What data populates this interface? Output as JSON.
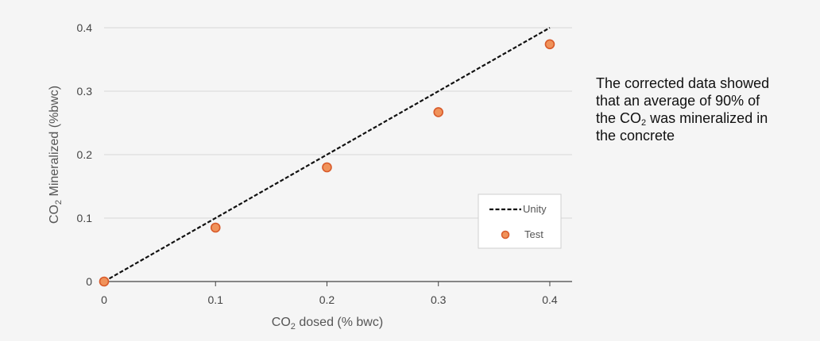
{
  "chart_data": {
    "type": "scatter",
    "x_label_main": "CO",
    "x_label_sub": "2",
    "x_label_rest": " dosed (% bwc)",
    "y_label_main": "CO",
    "y_label_sub": "2",
    "y_label_rest": " Mineralized (%bwc)",
    "xlim": [
      0,
      0.42
    ],
    "ylim": [
      0,
      0.4
    ],
    "x_ticks": [
      0,
      0.1,
      0.2,
      0.3,
      0.4
    ],
    "x_tick_labels": [
      "0",
      "0.1",
      "0.2",
      "0.3",
      "0.4"
    ],
    "y_ticks": [
      0,
      0.1,
      0.2,
      0.3,
      0.4
    ],
    "y_tick_labels": [
      "0",
      "0.1",
      "0.2",
      "0.3",
      "0.4"
    ],
    "grid": "horizontal",
    "legend_position": "bottom-right",
    "series": [
      {
        "name": "Unity",
        "kind": "line",
        "style": "dashed",
        "color": "#111111",
        "x": [
          0,
          0.4
        ],
        "y": [
          0,
          0.4
        ]
      },
      {
        "name": "Test",
        "kind": "scatter",
        "color": "#f0925a",
        "edge_color": "#d85a2a",
        "x": [
          0,
          0.1,
          0.2,
          0.3,
          0.4
        ],
        "y": [
          0,
          0.085,
          0.18,
          0.267,
          0.374
        ]
      }
    ]
  },
  "note": {
    "line1": "The corrected data showed",
    "line2": "that an average of 90% of",
    "line3_a": "the CO",
    "line3_sub": "2",
    "line3_b": " was mineralized in",
    "line4": "the concrete"
  }
}
